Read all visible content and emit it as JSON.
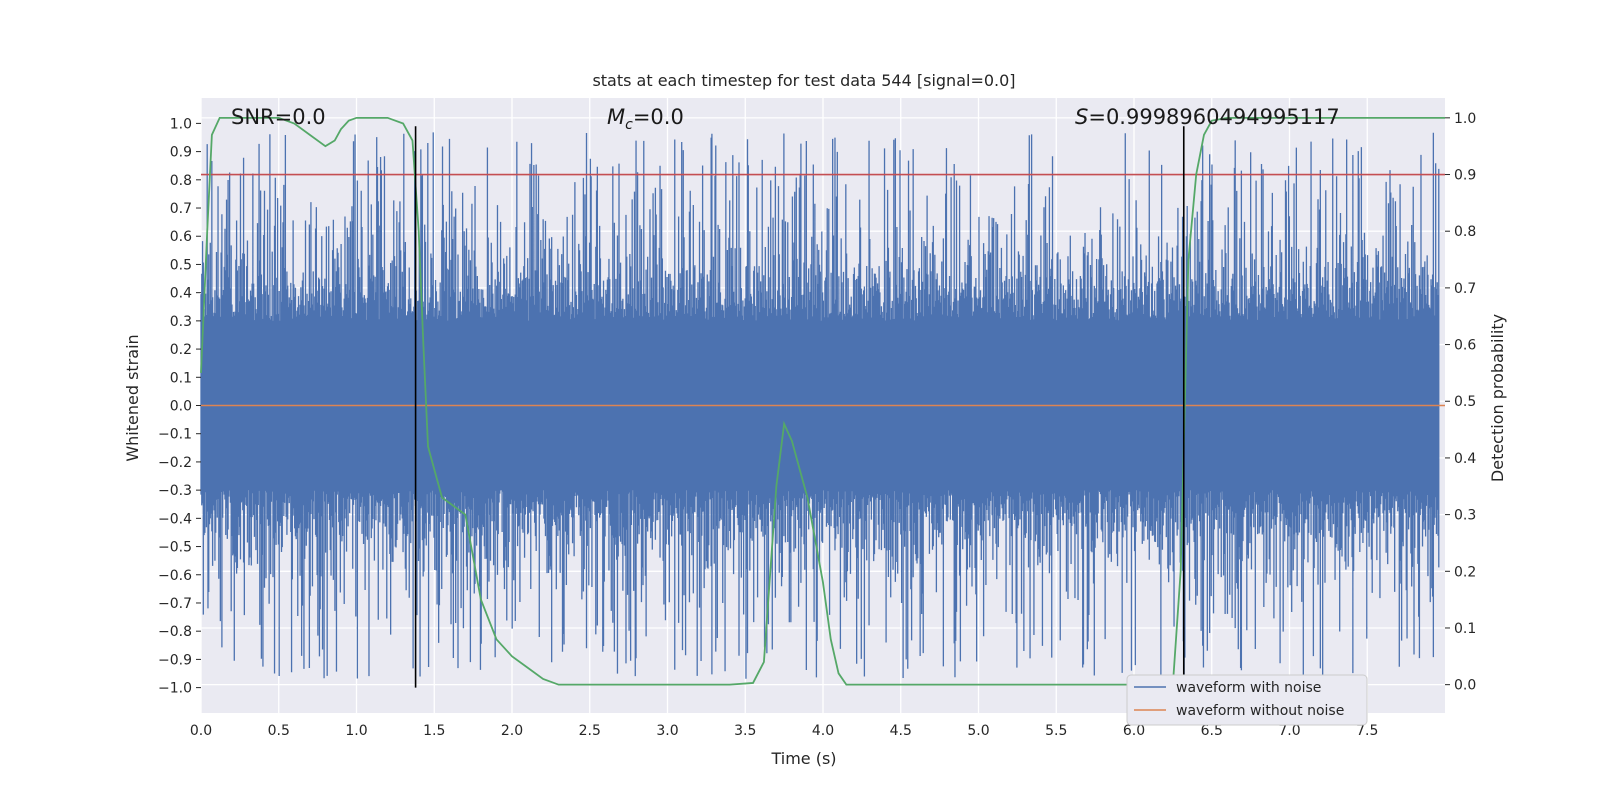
{
  "chart_data": {
    "type": "line",
    "title": "stats at each timestep for test data 544 [signal=0.0]",
    "xlabel": "Time (s)",
    "ylabel": "Whitened strain",
    "y2label": "Detection probability",
    "xlim": [
      0.0,
      8.0
    ],
    "ylim": [
      -1.09,
      1.09
    ],
    "y2lim": [
      -0.05,
      1.035
    ],
    "xticks": [
      "0.0",
      "0.5",
      "1.0",
      "1.5",
      "2.0",
      "2.5",
      "3.0",
      "3.5",
      "4.0",
      "4.5",
      "5.0",
      "5.5",
      "6.0",
      "6.5",
      "7.0",
      "7.5"
    ],
    "yticks": [
      "1.0",
      "0.9",
      "0.8",
      "0.7",
      "0.6",
      "0.5",
      "0.4",
      "0.3",
      "0.2",
      "0.1",
      "0.0",
      "−0.1",
      "−0.2",
      "−0.3",
      "−0.4",
      "−0.5",
      "−0.6",
      "−0.7",
      "−0.8",
      "−0.9",
      "−1.0"
    ],
    "y2ticks": [
      "1.0",
      "0.9",
      "0.8",
      "0.7",
      "0.6",
      "0.5",
      "0.4",
      "0.3",
      "0.2",
      "0.1",
      "0.0"
    ],
    "annotations": {
      "snr": "SNR=0.0",
      "mc_symbol": "M",
      "mc_sub": "c",
      "mc_value": "=0.0",
      "s_symbol": "S",
      "s_value": "=0.9998960494995117"
    },
    "vertical_lines_x": [
      1.38,
      6.32
    ],
    "threshold_y2": 0.9,
    "series": [
      {
        "name": "waveform with noise",
        "color": "#4c72b0",
        "axis": "left",
        "envelope": "noise, amplitude approx 0.3 with spikes to about ±1.0 across 0–8 s"
      },
      {
        "name": "waveform without noise",
        "color": "#dd8452",
        "axis": "left",
        "values_constant": 0.0
      },
      {
        "name": "detection probability",
        "color": "#55a868",
        "axis": "right",
        "x": [
          0.0,
          0.04,
          0.07,
          0.12,
          0.2,
          0.35,
          0.5,
          0.6,
          0.7,
          0.8,
          0.86,
          0.9,
          0.95,
          1.0,
          1.1,
          1.2,
          1.3,
          1.36,
          1.4,
          1.43,
          1.46,
          1.5,
          1.55,
          1.6,
          1.7,
          1.8,
          1.9,
          2.0,
          2.1,
          2.2,
          2.3,
          2.4,
          2.6,
          3.0,
          3.4,
          3.55,
          3.62,
          3.7,
          3.75,
          3.8,
          3.9,
          4.0,
          4.05,
          4.1,
          4.15,
          4.3,
          5.0,
          6.0,
          6.25,
          6.3,
          6.35,
          6.4,
          6.45,
          6.5,
          6.6,
          7.0,
          7.5,
          8.0
        ],
        "values": [
          0.55,
          0.8,
          0.97,
          1.0,
          1.0,
          1.0,
          1.0,
          0.99,
          0.97,
          0.95,
          0.96,
          0.98,
          0.995,
          1.0,
          1.0,
          1.0,
          0.99,
          0.96,
          0.8,
          0.6,
          0.42,
          0.38,
          0.33,
          0.32,
          0.3,
          0.15,
          0.08,
          0.05,
          0.03,
          0.01,
          0.0,
          0.0,
          0.0,
          0.0,
          0.0,
          0.003,
          0.04,
          0.35,
          0.46,
          0.43,
          0.33,
          0.18,
          0.08,
          0.02,
          0.0,
          0.0,
          0.0,
          0.0,
          0.0,
          0.2,
          0.75,
          0.9,
          0.97,
          0.995,
          1.0,
          1.0,
          1.0,
          1.0
        ]
      }
    ],
    "legend": {
      "placement": "lower-right",
      "entries": [
        "waveform with noise",
        "waveform without noise"
      ]
    },
    "colors": {
      "background": "#eaeaf2",
      "grid": "#ffffff",
      "threshold": "#c44e52",
      "vline": "#000000"
    }
  }
}
